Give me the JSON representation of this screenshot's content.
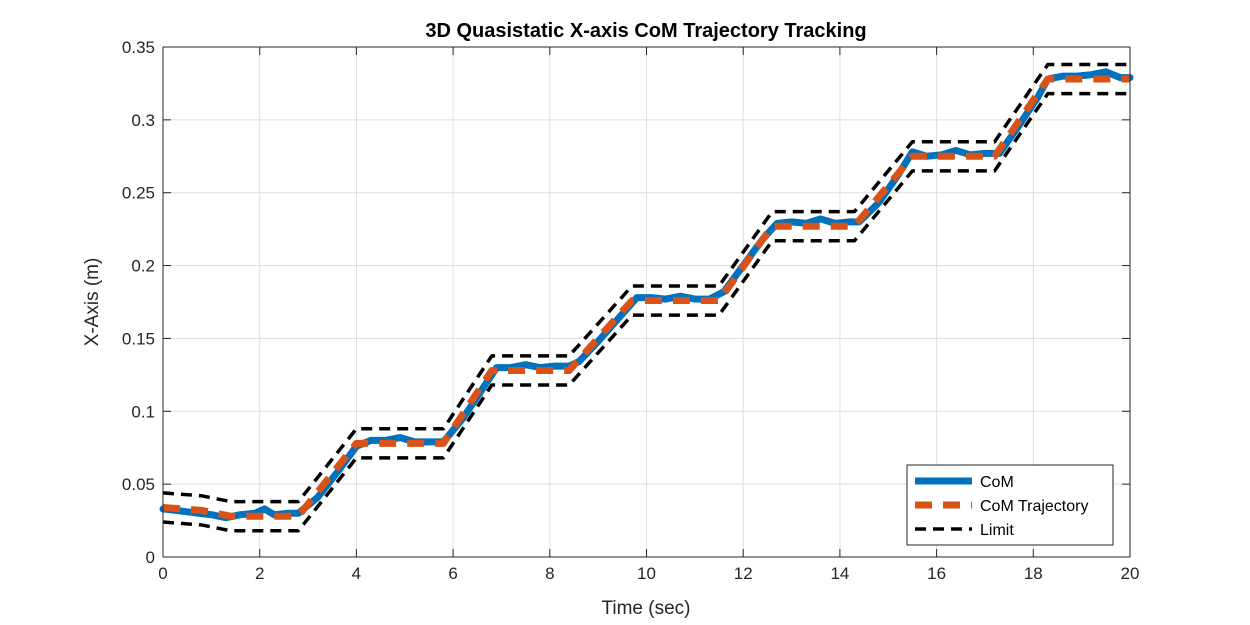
{
  "chart_data": {
    "type": "line",
    "title": "3D Quasistatic X-axis CoM Trajectory Tracking",
    "xlabel": "Time (sec)",
    "ylabel": "X-Axis (m)",
    "xlim": [
      0,
      20
    ],
    "ylim": [
      0,
      0.35
    ],
    "xticks": [
      0,
      2,
      4,
      6,
      8,
      10,
      12,
      14,
      16,
      18,
      20
    ],
    "yticks": [
      0,
      0.05,
      0.1,
      0.15,
      0.2,
      0.25,
      0.3,
      0.35
    ],
    "xtick_labels": [
      "0",
      "2",
      "4",
      "6",
      "8",
      "10",
      "12",
      "14",
      "16",
      "18",
      "20"
    ],
    "ytick_labels": [
      "0",
      "0.05",
      "0.1",
      "0.15",
      "0.2",
      "0.25",
      "0.3",
      "0.35"
    ],
    "grid": true,
    "legend_position": "bottom-right",
    "series": [
      {
        "name": "CoM",
        "color": "#0072BD",
        "style": "solid",
        "x": [
          0,
          0.5,
          1.0,
          1.3,
          1.6,
          1.9,
          2.1,
          2.3,
          2.6,
          2.8,
          3.2,
          3.6,
          4.0,
          4.3,
          4.6,
          4.9,
          5.2,
          5.6,
          5.8,
          6.2,
          6.6,
          6.9,
          7.2,
          7.5,
          7.8,
          8.1,
          8.4,
          8.6,
          9.0,
          9.4,
          9.8,
          10.1,
          10.4,
          10.7,
          11.0,
          11.3,
          11.6,
          12.0,
          12.4,
          12.7,
          13.0,
          13.3,
          13.6,
          13.9,
          14.2,
          14.4,
          14.8,
          15.2,
          15.5,
          15.8,
          16.1,
          16.4,
          16.7,
          17.0,
          17.3,
          17.7,
          18.1,
          18.3,
          18.6,
          18.9,
          19.2,
          19.5,
          19.8,
          20.0
        ],
        "y": [
          0.033,
          0.031,
          0.029,
          0.027,
          0.029,
          0.03,
          0.033,
          0.029,
          0.03,
          0.03,
          0.041,
          0.058,
          0.076,
          0.08,
          0.08,
          0.082,
          0.079,
          0.079,
          0.079,
          0.095,
          0.115,
          0.13,
          0.13,
          0.132,
          0.13,
          0.131,
          0.131,
          0.134,
          0.148,
          0.163,
          0.178,
          0.178,
          0.177,
          0.179,
          0.177,
          0.177,
          0.182,
          0.2,
          0.218,
          0.229,
          0.23,
          0.229,
          0.232,
          0.229,
          0.23,
          0.23,
          0.243,
          0.262,
          0.278,
          0.275,
          0.276,
          0.279,
          0.276,
          0.277,
          0.277,
          0.296,
          0.316,
          0.328,
          0.33,
          0.33,
          0.331,
          0.333,
          0.329,
          0.329
        ]
      },
      {
        "name": "CoM Trajectory",
        "color": "#D95319",
        "style": "dashed",
        "x": [
          0,
          0.8,
          1.4,
          2.8,
          4.0,
          5.8,
          6.8,
          8.4,
          9.7,
          11.5,
          12.6,
          14.3,
          15.5,
          17.2,
          18.3,
          20.0
        ],
        "y": [
          0.034,
          0.032,
          0.028,
          0.028,
          0.078,
          0.078,
          0.128,
          0.128,
          0.176,
          0.176,
          0.227,
          0.227,
          0.275,
          0.275,
          0.328,
          0.328
        ]
      },
      {
        "name": "Limit",
        "color": "#000000",
        "style": "dashed",
        "x": [
          0,
          0.8,
          1.4,
          2.8,
          4.0,
          5.8,
          6.8,
          8.4,
          9.7,
          11.5,
          12.6,
          14.3,
          15.5,
          17.2,
          18.3,
          20.0
        ],
        "y": [
          0.044,
          0.042,
          0.038,
          0.038,
          0.088,
          0.088,
          0.138,
          0.138,
          0.186,
          0.186,
          0.237,
          0.237,
          0.285,
          0.285,
          0.338,
          0.338
        ]
      },
      {
        "name": "",
        "color": "#000000",
        "style": "dashed",
        "x": [
          0,
          0.8,
          1.4,
          2.8,
          4.0,
          5.8,
          6.8,
          8.4,
          9.7,
          11.5,
          12.6,
          14.3,
          15.5,
          17.2,
          18.3,
          20.0
        ],
        "y": [
          0.024,
          0.022,
          0.018,
          0.018,
          0.068,
          0.068,
          0.118,
          0.118,
          0.166,
          0.166,
          0.217,
          0.217,
          0.265,
          0.265,
          0.318,
          0.318
        ]
      }
    ],
    "legend": [
      "CoM",
      "CoM Trajectory",
      "Limit"
    ]
  }
}
